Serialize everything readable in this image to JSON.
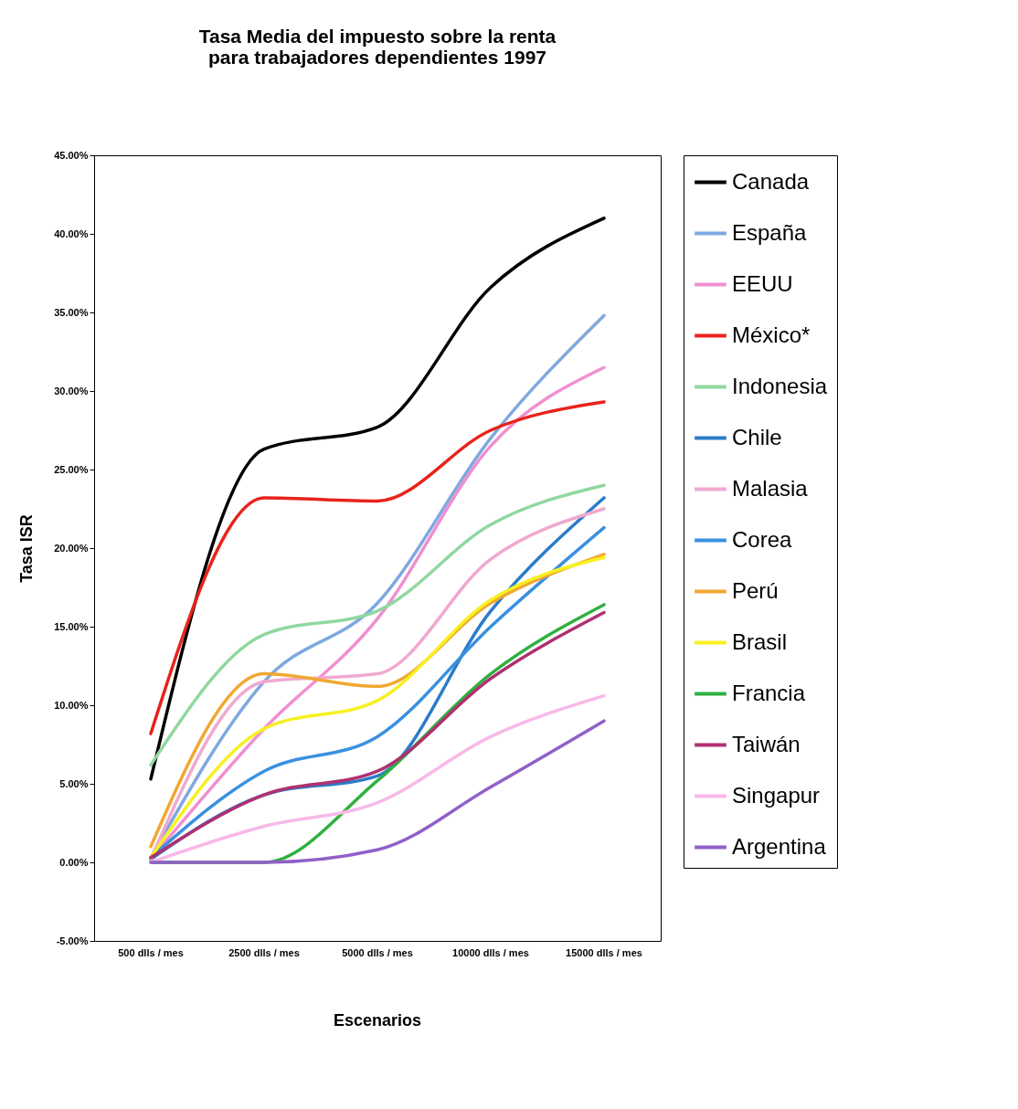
{
  "chart_data": {
    "type": "line",
    "title": "Tasa Media del impuesto sobre la renta para trabajadores dependientes 1997",
    "xlabel": "Escenarios",
    "ylabel": "Tasa ISR",
    "categories": [
      "500 dlls / mes",
      "2500 dlls / mes",
      "5000 dlls / mes",
      "10000 dlls / mes",
      "15000 dlls / mes"
    ],
    "ylim": [
      -5,
      45
    ],
    "yticks": [
      {
        "value": -5,
        "label": "-5.00%"
      },
      {
        "value": 0,
        "label": "0.00%"
      },
      {
        "value": 5,
        "label": "5.00%"
      },
      {
        "value": 10,
        "label": "10.00%"
      },
      {
        "value": 15,
        "label": "15.00%"
      },
      {
        "value": 20,
        "label": "20.00%"
      },
      {
        "value": 25,
        "label": "25.00%"
      },
      {
        "value": 30,
        "label": "30.00%"
      },
      {
        "value": 35,
        "label": "35.00%"
      },
      {
        "value": 40,
        "label": "40.00%"
      },
      {
        "value": 45,
        "label": "45.00%"
      }
    ],
    "grid": false,
    "legend": "top right",
    "marker": "none",
    "series": [
      {
        "name": "Canada",
        "color": "#000000",
        "values": [
          5.3,
          26.3,
          27.7,
          36.6,
          41
        ]
      },
      {
        "name": "España",
        "color": "#7fa8e0",
        "values": [
          0.3,
          11.5,
          16.5,
          27,
          34.8
        ]
      },
      {
        "name": "EEUU",
        "color": "#f08fd0",
        "values": [
          0.2,
          8.5,
          15.5,
          26.5,
          31.5
        ]
      },
      {
        "name": "México*",
        "color": "#e8231c",
        "values": [
          8.2,
          23.2,
          23,
          27.5,
          29.3
        ]
      },
      {
        "name": "Indonesia",
        "color": "#90d8a0",
        "values": [
          6.2,
          14.5,
          16,
          21.5,
          24
        ]
      },
      {
        "name": "Chile",
        "color": "#2a7cc8",
        "values": [
          0.2,
          4.3,
          5.5,
          16,
          23.2
        ]
      },
      {
        "name": "Malasia",
        "color": "#f0a8d0",
        "values": [
          0.2,
          11.5,
          12,
          19.3,
          22.5
        ]
      },
      {
        "name": "Corea",
        "color": "#3a90e0",
        "values": [
          0.3,
          5.8,
          8,
          15,
          21.3
        ]
      },
      {
        "name": "Perú",
        "color": "#f0a830",
        "values": [
          1,
          12,
          11.2,
          16.5,
          19.6
        ]
      },
      {
        "name": "Brasil",
        "color": "#f8f020",
        "values": [
          0.3,
          8.5,
          10.3,
          16.7,
          19.4
        ]
      },
      {
        "name": "Francia",
        "color": "#30b040",
        "values": [
          0,
          0,
          5.2,
          12,
          16.4
        ]
      },
      {
        "name": "Taiwán",
        "color": "#b03070",
        "values": [
          0.3,
          4.3,
          5.8,
          11.7,
          15.9
        ]
      },
      {
        "name": "Singapur",
        "color": "#f8b8e8",
        "values": [
          0,
          2.3,
          3.8,
          8,
          10.6
        ]
      },
      {
        "name": "Argentina",
        "color": "#9060c8",
        "values": [
          0,
          0,
          0.8,
          4.8,
          9
        ]
      }
    ]
  }
}
